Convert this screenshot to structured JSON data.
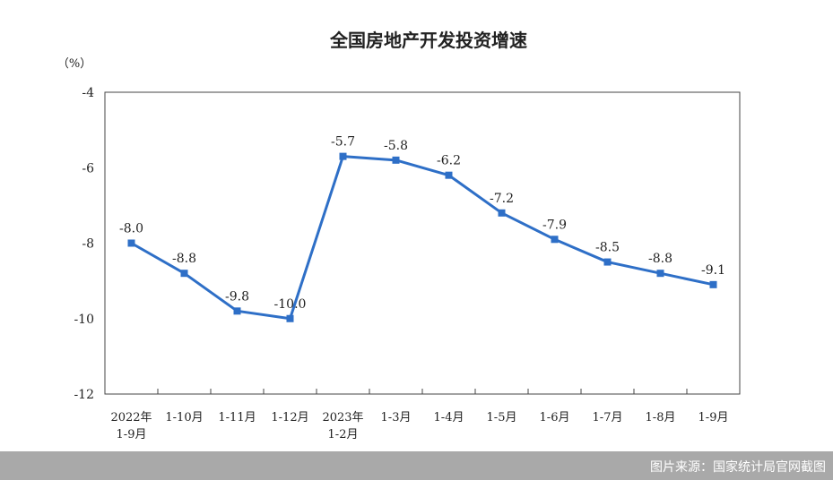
{
  "chart_data": {
    "type": "line",
    "title": "全国房地产开发投资增速",
    "unit_label": "（%）",
    "categories": [
      [
        "2022年",
        "1-9月"
      ],
      [
        "1-10月"
      ],
      [
        "1-11月"
      ],
      [
        "1-12月"
      ],
      [
        "2023年",
        "1-2月"
      ],
      [
        "1-3月"
      ],
      [
        "1-4月"
      ],
      [
        "1-5月"
      ],
      [
        "1-6月"
      ],
      [
        "1-7月"
      ],
      [
        "1-8月"
      ],
      [
        "1-9月"
      ]
    ],
    "values": [
      -8.0,
      -8.8,
      -9.8,
      -10.0,
      -5.7,
      -5.8,
      -6.2,
      -7.2,
      -7.9,
      -8.5,
      -8.8,
      -9.1
    ],
    "data_labels": [
      "-8.0",
      "-8.8",
      "-9.8",
      "-10.0",
      "-5.7",
      "-5.8",
      "-6.2",
      "-7.2",
      "-7.9",
      "-8.5",
      "-8.8",
      "-9.1"
    ],
    "yticks": [
      -4,
      -6,
      -8,
      -10,
      -12
    ],
    "ylim": [
      -12,
      -4
    ],
    "line_color": "#2e6fc7",
    "grid": false
  },
  "footer": {
    "source": "图片来源：国家统计局官网截图"
  }
}
